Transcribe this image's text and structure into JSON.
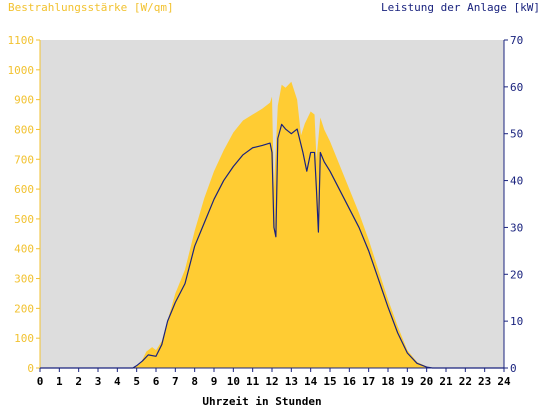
{
  "chart_data": {
    "type": "area",
    "left_title": "Bestrahlungsstärke [W/qm]",
    "right_title": "Leistung der Anlage [kW]",
    "xlabel": "Uhrzeit in Stunden",
    "xlim": [
      0,
      24
    ],
    "x_ticks": [
      "0",
      "1",
      "2",
      "3",
      "4",
      "5",
      "6",
      "7",
      "8",
      "9",
      "10",
      "11",
      "12",
      "13",
      "14",
      "15",
      "16",
      "17",
      "18",
      "19",
      "20",
      "21",
      "22",
      "23",
      "24"
    ],
    "y_left_lim": [
      0,
      1100
    ],
    "y_left_ticks": [
      "0",
      "100",
      "200",
      "300",
      "400",
      "500",
      "600",
      "700",
      "800",
      "900",
      "1000",
      "1100"
    ],
    "y_right_lim": [
      0,
      70
    ],
    "y_right_ticks": [
      "0",
      "10",
      "20",
      "30",
      "40",
      "50",
      "60",
      "70"
    ],
    "grid": false,
    "series": [
      {
        "name": "Bestrahlungsstärke [W/qm]",
        "axis": "left",
        "color": "#ffcc33",
        "x": [
          0,
          4.7,
          5.0,
          5.2,
          5.5,
          5.8,
          6.0,
          6.3,
          6.6,
          7.0,
          7.5,
          8.0,
          8.5,
          9.0,
          9.5,
          10.0,
          10.5,
          11.0,
          11.5,
          11.9,
          12.0,
          12.1,
          12.3,
          12.5,
          12.7,
          13.0,
          13.3,
          13.5,
          13.7,
          14.0,
          14.2,
          14.3,
          14.5,
          14.7,
          15.0,
          15.5,
          16.0,
          16.5,
          17.0,
          17.5,
          18.0,
          18.5,
          19.0,
          19.5,
          20.0,
          20.3,
          20.6,
          24
        ],
        "y": [
          0,
          0,
          5,
          15,
          55,
          70,
          60,
          90,
          160,
          250,
          330,
          460,
          570,
          660,
          730,
          790,
          830,
          850,
          870,
          890,
          910,
          600,
          880,
          950,
          940,
          960,
          900,
          780,
          820,
          860,
          850,
          700,
          840,
          800,
          760,
          680,
          600,
          520,
          430,
          330,
          230,
          140,
          60,
          20,
          5,
          0,
          0,
          0
        ]
      },
      {
        "name": "Leistung der Anlage [kW]",
        "axis": "right",
        "color": "#1a237e",
        "x": [
          0,
          4.8,
          5.0,
          5.3,
          5.6,
          6.0,
          6.3,
          6.6,
          7.0,
          7.5,
          8.0,
          8.5,
          9.0,
          9.5,
          10.0,
          10.5,
          11.0,
          11.5,
          11.9,
          12.0,
          12.1,
          12.2,
          12.3,
          12.5,
          12.7,
          13.0,
          13.3,
          13.6,
          13.8,
          14.0,
          14.2,
          14.3,
          14.4,
          14.5,
          14.7,
          15.0,
          15.5,
          16.0,
          16.5,
          17.0,
          17.5,
          18.0,
          18.5,
          19.0,
          19.5,
          20.0,
          20.3,
          20.5,
          24
        ],
        "y": [
          0,
          0,
          0.5,
          1.5,
          2.8,
          2.5,
          5,
          10,
          14,
          18,
          26,
          31,
          36,
          40,
          43,
          45.5,
          47,
          47.5,
          48,
          46,
          30,
          28,
          49,
          52,
          51,
          50,
          51,
          46,
          42,
          46,
          46,
          38,
          29,
          46,
          44,
          42,
          38,
          34,
          30,
          25,
          19,
          13,
          7.5,
          3.2,
          1.0,
          0.2,
          0,
          0,
          0
        ]
      }
    ]
  }
}
